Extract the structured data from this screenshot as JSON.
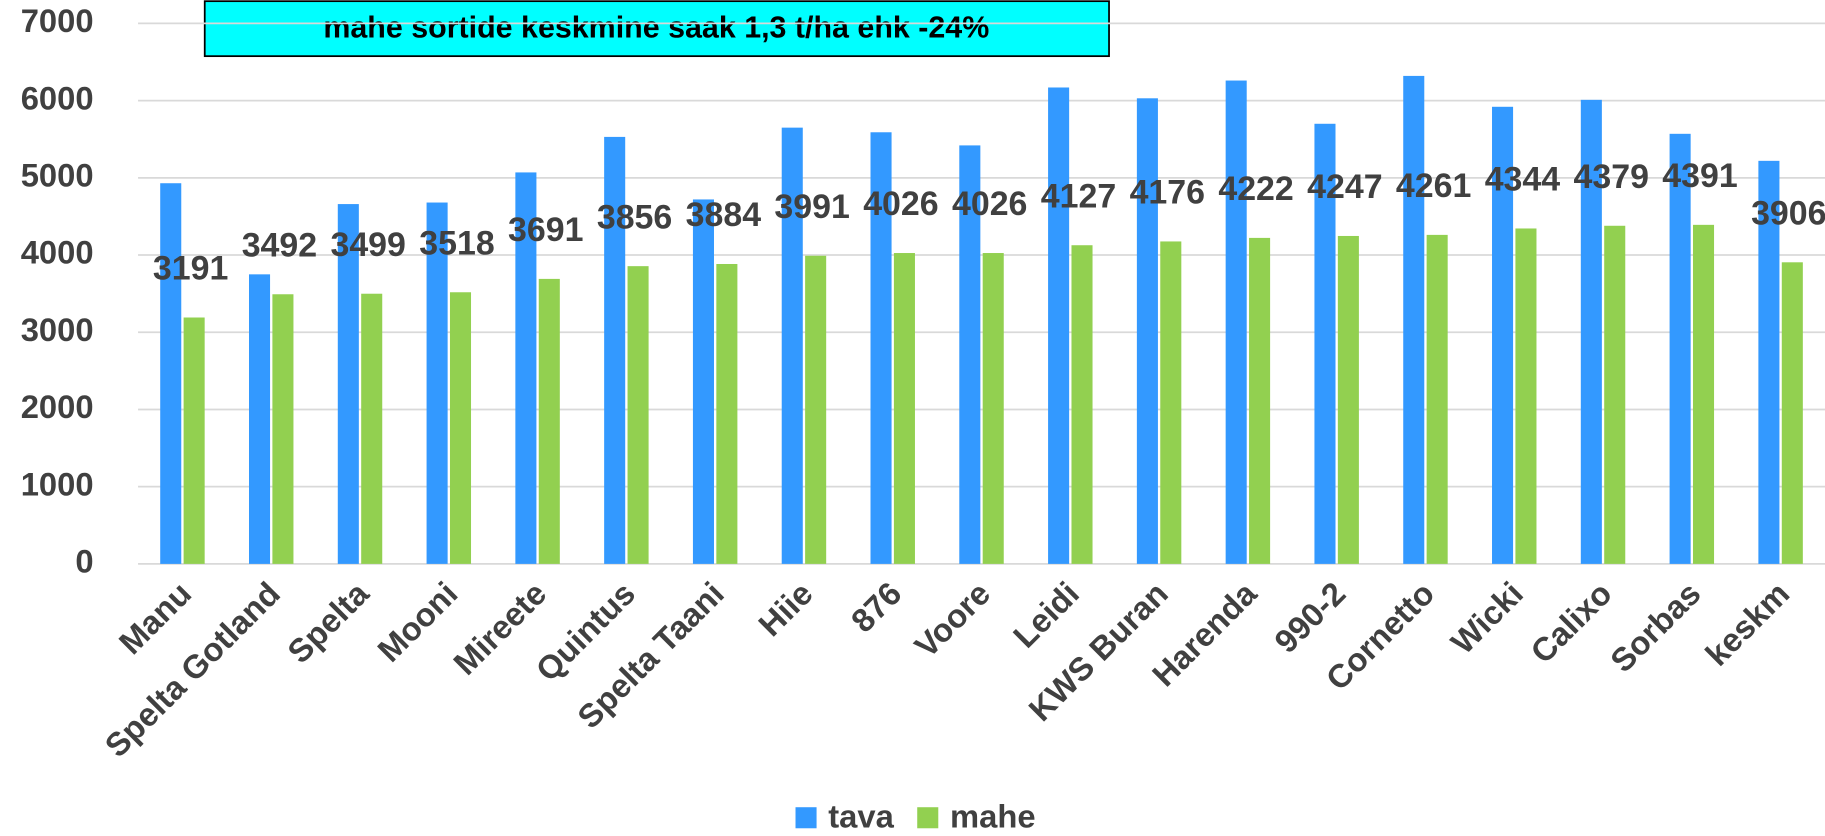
{
  "chart_data": {
    "type": "bar",
    "title": "mahe sortide keskmine saak 1,3 t/ha ehk -24%",
    "categories": [
      "Manu",
      "Spelta Gotland",
      "Spelta",
      "Mooni",
      "Mireete",
      "Quintus",
      "Spelta Taani",
      "Hiie",
      "876",
      "Voore",
      "Leidi",
      "KWS Buran",
      "Harenda",
      "990-2",
      "Cornetto",
      "Wicki",
      "Calixo",
      "Sorbas",
      "keskm"
    ],
    "series": [
      {
        "name": "tava",
        "color": "#3399ff",
        "values": [
          4930,
          3750,
          4660,
          4680,
          5070,
          5530,
          4720,
          5650,
          5590,
          5420,
          6170,
          6030,
          6260,
          5700,
          6320,
          5920,
          6010,
          5570,
          5220
        ]
      },
      {
        "name": "mahe",
        "color": "#92d050",
        "values": [
          3191,
          3492,
          3499,
          3518,
          3691,
          3856,
          3884,
          3991,
          4026,
          4026,
          4127,
          4176,
          4222,
          4247,
          4261,
          4344,
          4379,
          4391,
          3906
        ]
      }
    ],
    "ylim": [
      0,
      7000
    ],
    "yticks": [
      0,
      1000,
      2000,
      3000,
      4000,
      5000,
      6000,
      7000
    ],
    "grid": true,
    "legend": "bottom",
    "data_labels_series": "mahe"
  }
}
